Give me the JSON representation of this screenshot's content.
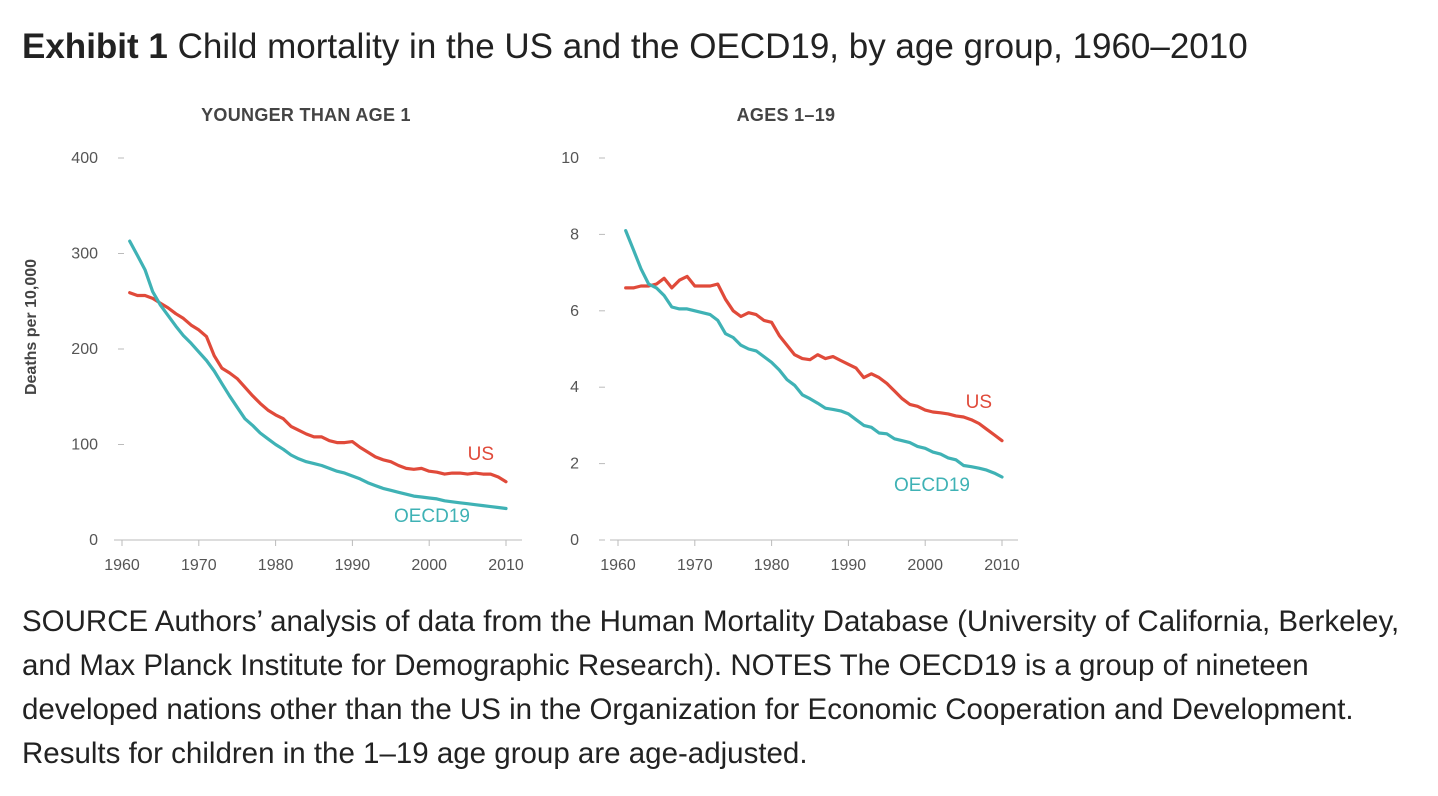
{
  "title": {
    "prefix": "Exhibit 1",
    "text": "Child mortality in the US and the OECD19, by age group, 1960–2010"
  },
  "note": "SOURCE Authors’ analysis of data from the Human Mortality Database (University of California, Berkeley, and Max Planck Institute for Demographic Research). NOTES The OECD19 is a group of nineteen developed nations other than the US in the Organization for Economic Cooperation and Development. Results for children in the 1–19 age group are age-adjusted.",
  "colors": {
    "US": "#e04a3a",
    "OECD19": "#3fb2b5",
    "axis": "#bbbbbb"
  },
  "chart_data": [
    {
      "type": "line",
      "title": "YOUNGER THAN AGE 1",
      "ylabel": "Deaths per 10,000",
      "xlabel": "",
      "xlim": [
        1959,
        2011
      ],
      "ylim": [
        0,
        400
      ],
      "xticks": [
        1960,
        1970,
        1980,
        1990,
        2000,
        2010
      ],
      "yticks": [
        0,
        100,
        200,
        300,
        400
      ],
      "series": [
        {
          "name": "US",
          "x": [
            1961,
            1962,
            1963,
            1964,
            1965,
            1966,
            1967,
            1968,
            1969,
            1970,
            1971,
            1972,
            1973,
            1974,
            1975,
            1976,
            1977,
            1978,
            1979,
            1980,
            1981,
            1982,
            1983,
            1984,
            1985,
            1986,
            1987,
            1988,
            1989,
            1990,
            1991,
            1992,
            1993,
            1994,
            1995,
            1996,
            1997,
            1998,
            1999,
            2000,
            2001,
            2002,
            2003,
            2004,
            2005,
            2006,
            2007,
            2008,
            2009,
            2010
          ],
          "y": [
            259,
            256,
            256,
            253,
            248,
            243,
            237,
            232,
            225,
            220,
            213,
            193,
            180,
            175,
            169,
            160,
            151,
            143,
            136,
            131,
            127,
            119,
            115,
            111,
            108,
            108,
            104,
            102,
            102,
            103,
            97,
            92,
            87,
            84,
            82,
            78,
            75,
            74,
            75,
            72,
            71,
            69,
            70,
            70,
            69,
            70,
            69,
            69,
            66,
            61
          ]
        },
        {
          "name": "OECD19",
          "x": [
            1961,
            1962,
            1963,
            1964,
            1965,
            1966,
            1967,
            1968,
            1969,
            1970,
            1971,
            1972,
            1973,
            1974,
            1975,
            1976,
            1977,
            1978,
            1979,
            1980,
            1981,
            1982,
            1983,
            1984,
            1985,
            1986,
            1987,
            1988,
            1989,
            1990,
            1991,
            1992,
            1993,
            1994,
            1995,
            1996,
            1997,
            1998,
            1999,
            2000,
            2001,
            2002,
            2003,
            2004,
            2005,
            2006,
            2007,
            2008,
            2009,
            2010
          ],
          "y": [
            313,
            298,
            283,
            260,
            246,
            235,
            224,
            214,
            206,
            197,
            188,
            177,
            164,
            151,
            139,
            127,
            120,
            112,
            106,
            100,
            95,
            89,
            85,
            82,
            80,
            78,
            75,
            72,
            70,
            67,
            64,
            60,
            57,
            54,
            52,
            50,
            48,
            46,
            45,
            44,
            43,
            41,
            40,
            39,
            38,
            37,
            36,
            35,
            34,
            33
          ]
        }
      ]
    },
    {
      "type": "line",
      "title": "AGES 1–19",
      "ylabel": "",
      "xlabel": "",
      "xlim": [
        1959,
        2011
      ],
      "ylim": [
        0,
        10
      ],
      "xticks": [
        1960,
        1970,
        1980,
        1990,
        2000,
        2010
      ],
      "yticks": [
        0,
        2,
        4,
        6,
        8,
        10
      ],
      "series": [
        {
          "name": "US",
          "x": [
            1961,
            1962,
            1963,
            1964,
            1965,
            1966,
            1967,
            1968,
            1969,
            1970,
            1971,
            1972,
            1973,
            1974,
            1975,
            1976,
            1977,
            1978,
            1979,
            1980,
            1981,
            1982,
            1983,
            1984,
            1985,
            1986,
            1987,
            1988,
            1989,
            1990,
            1991,
            1992,
            1993,
            1994,
            1995,
            1996,
            1997,
            1998,
            1999,
            2000,
            2001,
            2002,
            2003,
            2004,
            2005,
            2006,
            2007,
            2008,
            2009,
            2010
          ],
          "y": [
            6.6,
            6.6,
            6.65,
            6.65,
            6.7,
            6.85,
            6.6,
            6.8,
            6.9,
            6.65,
            6.65,
            6.65,
            6.7,
            6.3,
            6.0,
            5.85,
            5.95,
            5.9,
            5.75,
            5.7,
            5.35,
            5.1,
            4.85,
            4.75,
            4.72,
            4.85,
            4.75,
            4.8,
            4.7,
            4.6,
            4.5,
            4.25,
            4.35,
            4.25,
            4.1,
            3.9,
            3.7,
            3.55,
            3.5,
            3.4,
            3.35,
            3.33,
            3.3,
            3.25,
            3.22,
            3.15,
            3.05,
            2.9,
            2.75,
            2.6
          ]
        },
        {
          "name": "OECD19",
          "x": [
            1961,
            1962,
            1963,
            1964,
            1965,
            1966,
            1967,
            1968,
            1969,
            1970,
            1971,
            1972,
            1973,
            1974,
            1975,
            1976,
            1977,
            1978,
            1979,
            1980,
            1981,
            1982,
            1983,
            1984,
            1985,
            1986,
            1987,
            1988,
            1989,
            1990,
            1991,
            1992,
            1993,
            1994,
            1995,
            1996,
            1997,
            1998,
            1999,
            2000,
            2001,
            2002,
            2003,
            2004,
            2005,
            2006,
            2007,
            2008,
            2009,
            2010
          ],
          "y": [
            8.1,
            7.6,
            7.1,
            6.7,
            6.6,
            6.4,
            6.1,
            6.05,
            6.05,
            6.0,
            5.95,
            5.9,
            5.75,
            5.4,
            5.3,
            5.1,
            5.0,
            4.95,
            4.8,
            4.65,
            4.45,
            4.2,
            4.05,
            3.8,
            3.7,
            3.58,
            3.45,
            3.42,
            3.38,
            3.3,
            3.15,
            3.0,
            2.95,
            2.8,
            2.78,
            2.65,
            2.6,
            2.55,
            2.45,
            2.4,
            2.3,
            2.25,
            2.15,
            2.1,
            1.95,
            1.92,
            1.88,
            1.83,
            1.75,
            1.65
          ]
        }
      ]
    }
  ]
}
